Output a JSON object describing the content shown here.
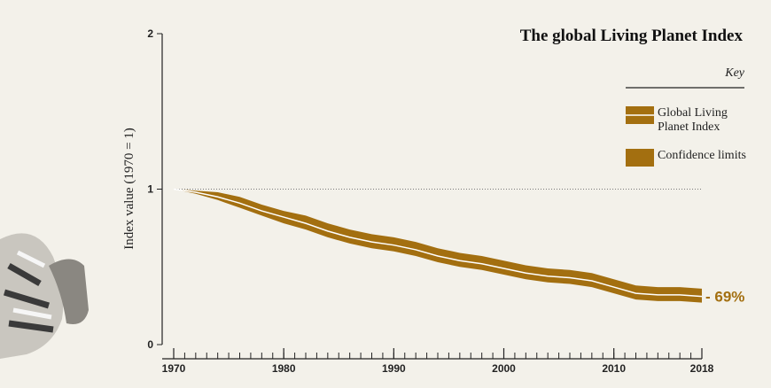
{
  "chart_data": {
    "type": "line_band",
    "title": "The global Living Planet Index",
    "y_axis_label": "Index value (1970 = 1)",
    "legend_title": "Key",
    "annotation": "- 69%",
    "x": [
      1970,
      1972,
      1974,
      1976,
      1978,
      1980,
      1982,
      1984,
      1986,
      1988,
      1990,
      1992,
      1994,
      1996,
      1998,
      2000,
      2002,
      2004,
      2006,
      2008,
      2010,
      2012,
      2014,
      2016,
      2018
    ],
    "series": [
      {
        "name": "Global Living Planet Index",
        "color": "#ffffff",
        "values": [
          1.0,
          0.98,
          0.95,
          0.91,
          0.86,
          0.82,
          0.78,
          0.73,
          0.69,
          0.66,
          0.64,
          0.61,
          0.57,
          0.54,
          0.52,
          0.49,
          0.46,
          0.44,
          0.43,
          0.41,
          0.37,
          0.33,
          0.32,
          0.32,
          0.31
        ]
      },
      {
        "name": "Confidence limits",
        "color": "#a36f10",
        "upper": [
          1.0,
          0.99,
          0.98,
          0.95,
          0.9,
          0.86,
          0.83,
          0.78,
          0.74,
          0.71,
          0.69,
          0.66,
          0.62,
          0.59,
          0.57,
          0.54,
          0.51,
          0.49,
          0.48,
          0.46,
          0.42,
          0.38,
          0.37,
          0.37,
          0.36
        ],
        "lower": [
          1.0,
          0.97,
          0.93,
          0.88,
          0.83,
          0.78,
          0.74,
          0.69,
          0.65,
          0.62,
          0.6,
          0.57,
          0.53,
          0.5,
          0.48,
          0.45,
          0.42,
          0.4,
          0.39,
          0.37,
          0.33,
          0.29,
          0.28,
          0.28,
          0.27
        ]
      }
    ],
    "xlim": [
      1970,
      2018
    ],
    "xticks": [
      1970,
      1980,
      1990,
      2000,
      2010,
      2018
    ],
    "ylim": [
      0,
      2
    ],
    "yticks": [
      0,
      1,
      2
    ],
    "reference_line": 1
  }
}
